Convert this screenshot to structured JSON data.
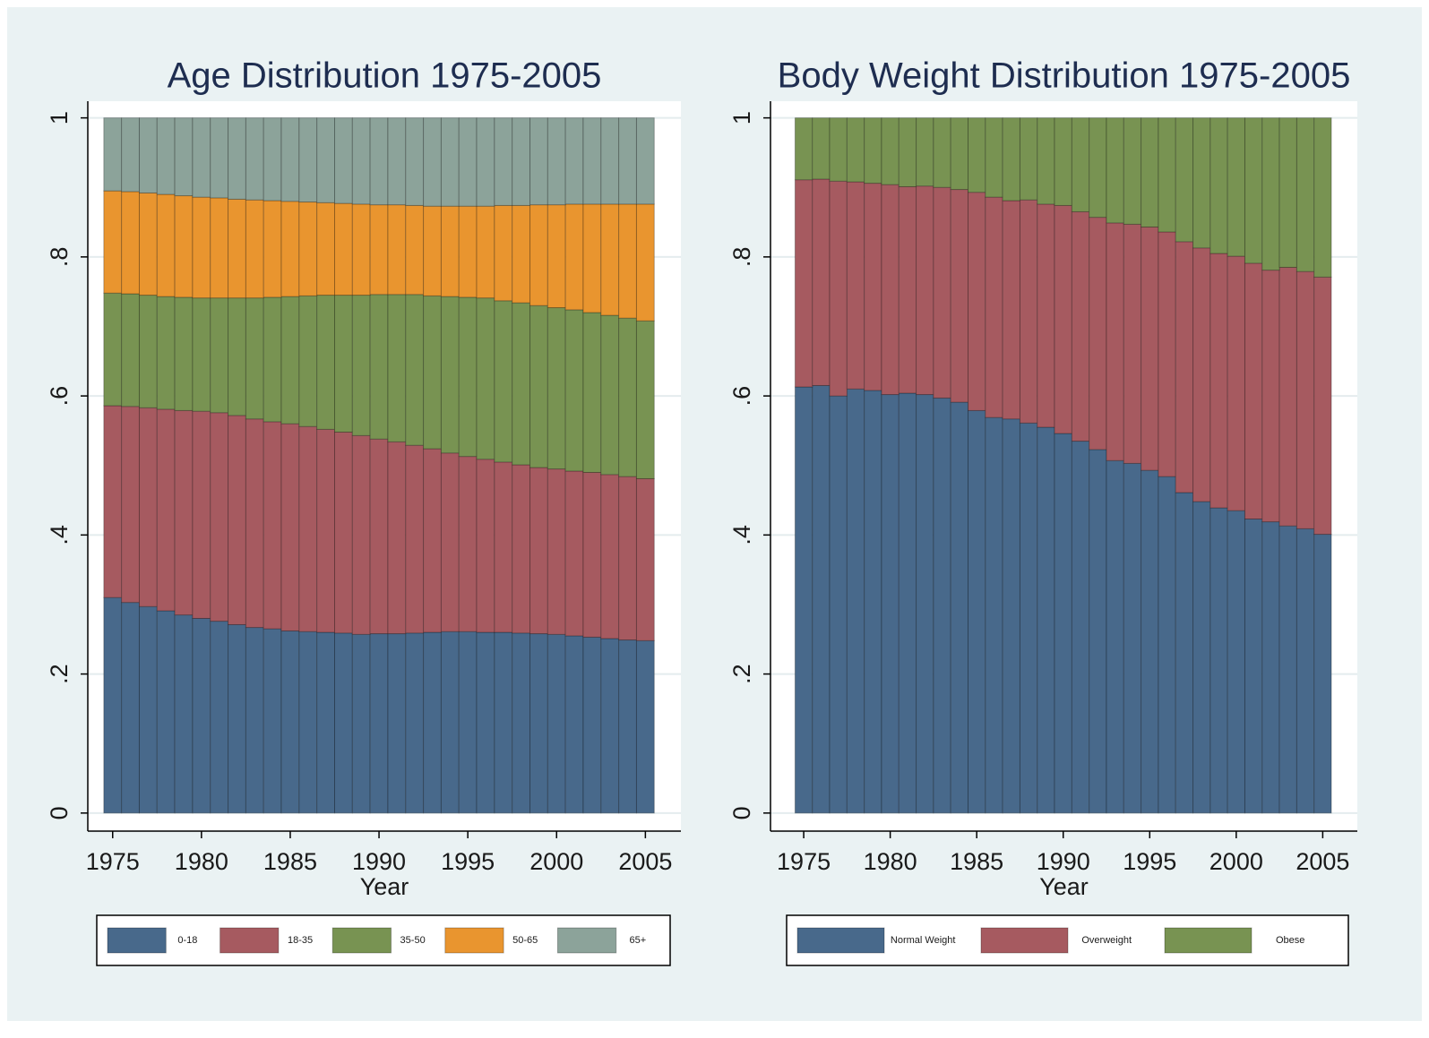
{
  "chart_data": [
    {
      "type": "bar",
      "stacked": true,
      "title": "Age Distribution 1975-2005",
      "xlabel": "Year",
      "x": [
        1975,
        1976,
        1977,
        1978,
        1979,
        1980,
        1981,
        1982,
        1983,
        1984,
        1985,
        1986,
        1987,
        1988,
        1989,
        1990,
        1991,
        1992,
        1993,
        1994,
        1995,
        1996,
        1997,
        1998,
        1999,
        2000,
        2001,
        2002,
        2003,
        2004,
        2005
      ],
      "xlim": [
        1973.6,
        2007.0
      ],
      "xticks": [
        1975,
        1980,
        1985,
        1990,
        1995,
        2000,
        2005
      ],
      "ylim": [
        -0.026,
        1.024
      ],
      "yticks": [
        0,
        {
          "value": 0.2,
          "label": ".2"
        },
        {
          "value": 0.4,
          "label": ".4"
        },
        {
          "value": 0.6,
          "label": ".6"
        },
        {
          "value": 0.8,
          "label": ".8"
        },
        1
      ],
      "grid": true,
      "series": [
        {
          "name": "0-18",
          "color": "#48698b",
          "values": [
            0.31,
            0.303,
            0.297,
            0.291,
            0.285,
            0.28,
            0.276,
            0.271,
            0.267,
            0.265,
            0.262,
            0.261,
            0.26,
            0.259,
            0.257,
            0.258,
            0.258,
            0.259,
            0.26,
            0.261,
            0.261,
            0.26,
            0.26,
            0.259,
            0.258,
            0.257,
            0.255,
            0.253,
            0.251,
            0.249,
            0.248
          ]
        },
        {
          "name": "18-35",
          "color": "#a65a60",
          "values": [
            0.276,
            0.282,
            0.286,
            0.29,
            0.294,
            0.298,
            0.3,
            0.301,
            0.3,
            0.298,
            0.298,
            0.295,
            0.292,
            0.289,
            0.286,
            0.28,
            0.276,
            0.27,
            0.264,
            0.257,
            0.252,
            0.249,
            0.245,
            0.242,
            0.239,
            0.238,
            0.237,
            0.237,
            0.236,
            0.235,
            0.233
          ]
        },
        {
          "name": "35-50",
          "color": "#789352",
          "values": [
            0.162,
            0.162,
            0.162,
            0.162,
            0.163,
            0.163,
            0.165,
            0.169,
            0.174,
            0.179,
            0.183,
            0.188,
            0.193,
            0.197,
            0.202,
            0.208,
            0.212,
            0.217,
            0.22,
            0.225,
            0.229,
            0.232,
            0.232,
            0.233,
            0.233,
            0.232,
            0.232,
            0.23,
            0.229,
            0.228,
            0.227
          ]
        },
        {
          "name": "50-65",
          "color": "#e9952f",
          "values": [
            0.147,
            0.147,
            0.147,
            0.147,
            0.146,
            0.145,
            0.144,
            0.142,
            0.141,
            0.139,
            0.137,
            0.135,
            0.133,
            0.132,
            0.131,
            0.129,
            0.129,
            0.128,
            0.129,
            0.13,
            0.131,
            0.132,
            0.137,
            0.14,
            0.145,
            0.148,
            0.152,
            0.156,
            0.16,
            0.164,
            0.168
          ]
        },
        {
          "name": "65+",
          "color": "#8ca39a",
          "values": [
            0.105,
            0.106,
            0.108,
            0.11,
            0.112,
            0.114,
            0.115,
            0.117,
            0.118,
            0.119,
            0.12,
            0.121,
            0.122,
            0.123,
            0.124,
            0.125,
            0.125,
            0.126,
            0.127,
            0.127,
            0.127,
            0.127,
            0.126,
            0.126,
            0.125,
            0.125,
            0.124,
            0.124,
            0.124,
            0.124,
            0.124
          ]
        }
      ]
    },
    {
      "type": "bar",
      "stacked": true,
      "title": "Body Weight Distribution 1975-2005",
      "xlabel": "Year",
      "x": [
        1975,
        1976,
        1977,
        1978,
        1979,
        1980,
        1981,
        1982,
        1983,
        1984,
        1985,
        1986,
        1987,
        1988,
        1989,
        1990,
        1991,
        1992,
        1993,
        1994,
        1995,
        1996,
        1997,
        1998,
        1999,
        2000,
        2001,
        2002,
        2003,
        2004,
        2005
      ],
      "xlim": [
        1973.08,
        2007.0
      ],
      "xticks": [
        1975,
        1980,
        1985,
        1990,
        1995,
        2000,
        2005
      ],
      "ylim": [
        -0.026,
        1.024
      ],
      "yticks": [
        0,
        {
          "value": 0.2,
          "label": ".2"
        },
        {
          "value": 0.4,
          "label": ".4"
        },
        {
          "value": 0.6,
          "label": ".6"
        },
        {
          "value": 0.8,
          "label": ".8"
        },
        1
      ],
      "grid": true,
      "series": [
        {
          "name": "Normal Weight",
          "color": "#48698b",
          "values": [
            0.613,
            0.615,
            0.6,
            0.61,
            0.608,
            0.602,
            0.604,
            0.602,
            0.597,
            0.591,
            0.579,
            0.569,
            0.567,
            0.561,
            0.555,
            0.546,
            0.535,
            0.523,
            0.507,
            0.503,
            0.493,
            0.484,
            0.461,
            0.448,
            0.439,
            0.435,
            0.423,
            0.419,
            0.413,
            0.409,
            0.401
          ]
        },
        {
          "name": "Overweight",
          "color": "#a65a60",
          "values": [
            0.298,
            0.297,
            0.309,
            0.298,
            0.298,
            0.302,
            0.297,
            0.3,
            0.303,
            0.306,
            0.314,
            0.317,
            0.314,
            0.321,
            0.321,
            0.328,
            0.33,
            0.334,
            0.342,
            0.344,
            0.35,
            0.352,
            0.361,
            0.365,
            0.366,
            0.366,
            0.368,
            0.362,
            0.372,
            0.37,
            0.37
          ]
        },
        {
          "name": "Obese",
          "color": "#789352",
          "values": [
            0.089,
            0.088,
            0.091,
            0.092,
            0.094,
            0.096,
            0.099,
            0.098,
            0.1,
            0.103,
            0.107,
            0.114,
            0.119,
            0.118,
            0.124,
            0.126,
            0.135,
            0.143,
            0.151,
            0.153,
            0.157,
            0.164,
            0.178,
            0.187,
            0.195,
            0.199,
            0.209,
            0.219,
            0.215,
            0.221,
            0.229
          ]
        }
      ]
    }
  ]
}
